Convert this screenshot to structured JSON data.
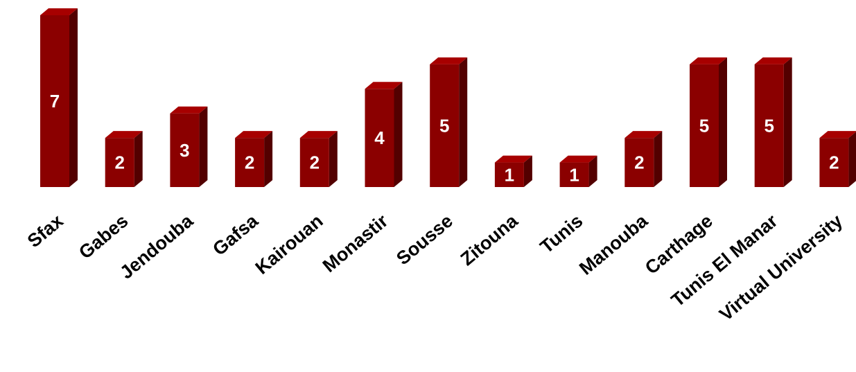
{
  "chart_data": {
    "type": "bar3d",
    "categories": [
      "Sfax",
      "Gabes",
      "Jendouba",
      "Gafsa",
      "Kairouan",
      "Monastir",
      "Sousse",
      "Zitouna",
      "Tunis",
      "Manouba",
      "Carthage",
      "Tunis El Manar",
      "Virtual University"
    ],
    "values": [
      7,
      2,
      3,
      2,
      2,
      4,
      5,
      1,
      1,
      2,
      5,
      5,
      2
    ],
    "color": "#8b0000"
  }
}
